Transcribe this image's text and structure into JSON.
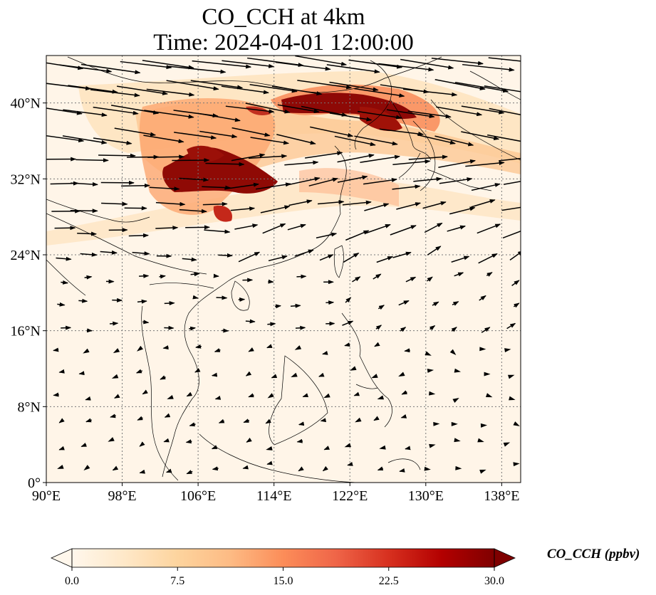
{
  "title": {
    "line1": "CO_CCH at 4km",
    "line2": "Time: 2024-04-01 12:00:00"
  },
  "map": {
    "variable": "CO_CCH",
    "level": "4km",
    "lon_range": [
      90,
      140
    ],
    "lat_range": [
      0,
      45
    ],
    "lon_ticks": [
      {
        "value": 90,
        "label": "90°E"
      },
      {
        "value": 98,
        "label": "98°E"
      },
      {
        "value": 106,
        "label": "106°E"
      },
      {
        "value": 114,
        "label": "114°E"
      },
      {
        "value": 122,
        "label": "122°E"
      },
      {
        "value": 130,
        "label": "130°E"
      },
      {
        "value": 138,
        "label": "138°E"
      }
    ],
    "lat_ticks": [
      {
        "value": 0,
        "label": "0°"
      },
      {
        "value": 8,
        "label": "8°N"
      },
      {
        "value": 16,
        "label": "16°N"
      },
      {
        "value": 24,
        "label": "24°N"
      },
      {
        "value": 32,
        "label": "32°N"
      },
      {
        "value": 40,
        "label": "40°N"
      }
    ],
    "gridlines": true,
    "wind_vectors": "shown",
    "colormap": "OrRd"
  },
  "colorbar": {
    "label": "CO_CCH (ppbv)",
    "min": 0,
    "max": 30,
    "extend": "both",
    "ticks": [
      {
        "value": 0,
        "label": "0.0"
      },
      {
        "value": 7.5,
        "label": "7.5"
      },
      {
        "value": 15,
        "label": "15.0"
      },
      {
        "value": 22.5,
        "label": "22.5"
      },
      {
        "value": 30,
        "label": "30.0"
      }
    ],
    "colors": [
      "#fff7ec",
      "#fee8c8",
      "#fdd49e",
      "#fdbb84",
      "#fc8d59",
      "#ef6548",
      "#d7301f",
      "#b30000",
      "#7f0000"
    ]
  }
}
